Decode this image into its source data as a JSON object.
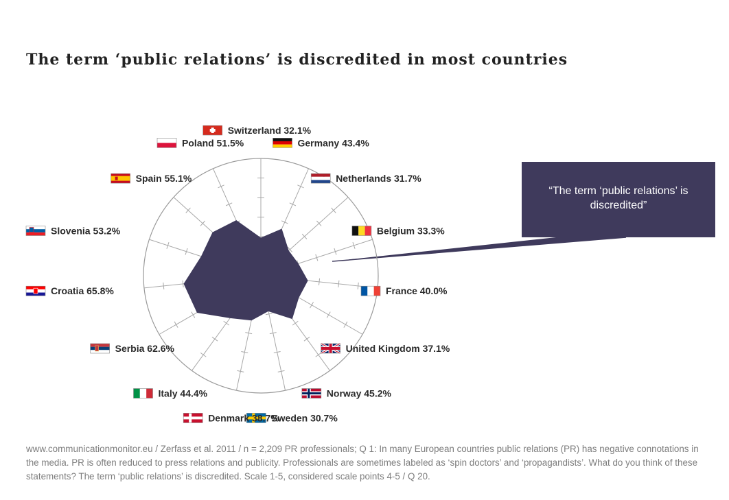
{
  "title": "The term ‘public relations’ is discredited in most countries",
  "callout": {
    "text": "“The term ‘public relations’ is discredited”"
  },
  "footnote": "www.communicationmonitor.eu / Zerfass et al. 2011 / n = 2,209 PR professionals; Q 1: In many European countries public relations (PR) has negative connotations in the media. PR is often reduced to press relations and publicity. Professionals are sometimes labeled as ‘spin doctors’ and ‘propagandists’. What do you think of these statements? The term ‘public relations’ is discredited. Scale 1-5, considered scale points 4-5 / Q 20.",
  "chart_data": {
    "type": "radar",
    "unit": "%",
    "rmax": 100,
    "series": [
      {
        "color": "#3f3a5c",
        "points": [
          {
            "country": "Switzerland",
            "label": "Switzerland 32.1%",
            "value": 32.1,
            "flag": "switzerland"
          },
          {
            "country": "Germany",
            "label": "Germany 43.4%",
            "value": 43.4,
            "flag": "germany"
          },
          {
            "country": "Netherlands",
            "label": "Netherlands 31.7%",
            "value": 31.7,
            "flag": "netherlands"
          },
          {
            "country": "Belgium",
            "label": "Belgium 33.3%",
            "value": 33.3,
            "flag": "belgium"
          },
          {
            "country": "France",
            "label": "France 40.0%",
            "value": 40.0,
            "flag": "france"
          },
          {
            "country": "United Kingdom",
            "label": "United Kingdom 37.1%",
            "value": 37.1,
            "flag": "uk"
          },
          {
            "country": "Norway",
            "label": "Norway 45.2%",
            "value": 45.2,
            "flag": "norway"
          },
          {
            "country": "Sweden",
            "label": "Sweden 30.7%",
            "value": 30.7,
            "flag": "sweden"
          },
          {
            "country": "Denmark",
            "label": "Denmark 38.7%",
            "value": 38.7,
            "flag": "denmark"
          },
          {
            "country": "Italy",
            "label": "Italy 44.4%",
            "value": 44.4,
            "flag": "italy"
          },
          {
            "country": "Serbia",
            "label": "Serbia 62.6%",
            "value": 62.6,
            "flag": "serbia"
          },
          {
            "country": "Croatia",
            "label": "Croatia 65.8%",
            "value": 65.8,
            "flag": "croatia"
          },
          {
            "country": "Slovenia",
            "label": "Slovenia 53.2%",
            "value": 53.2,
            "flag": "slovenia"
          },
          {
            "country": "Spain",
            "label": "Spain 55.1%",
            "value": 55.1,
            "flag": "spain"
          },
          {
            "country": "Poland",
            "label": "Poland 51.5%",
            "value": 51.5,
            "flag": "poland"
          }
        ]
      }
    ],
    "grid": {
      "outer_circle": true,
      "spokes": true,
      "ticks": 5
    }
  }
}
